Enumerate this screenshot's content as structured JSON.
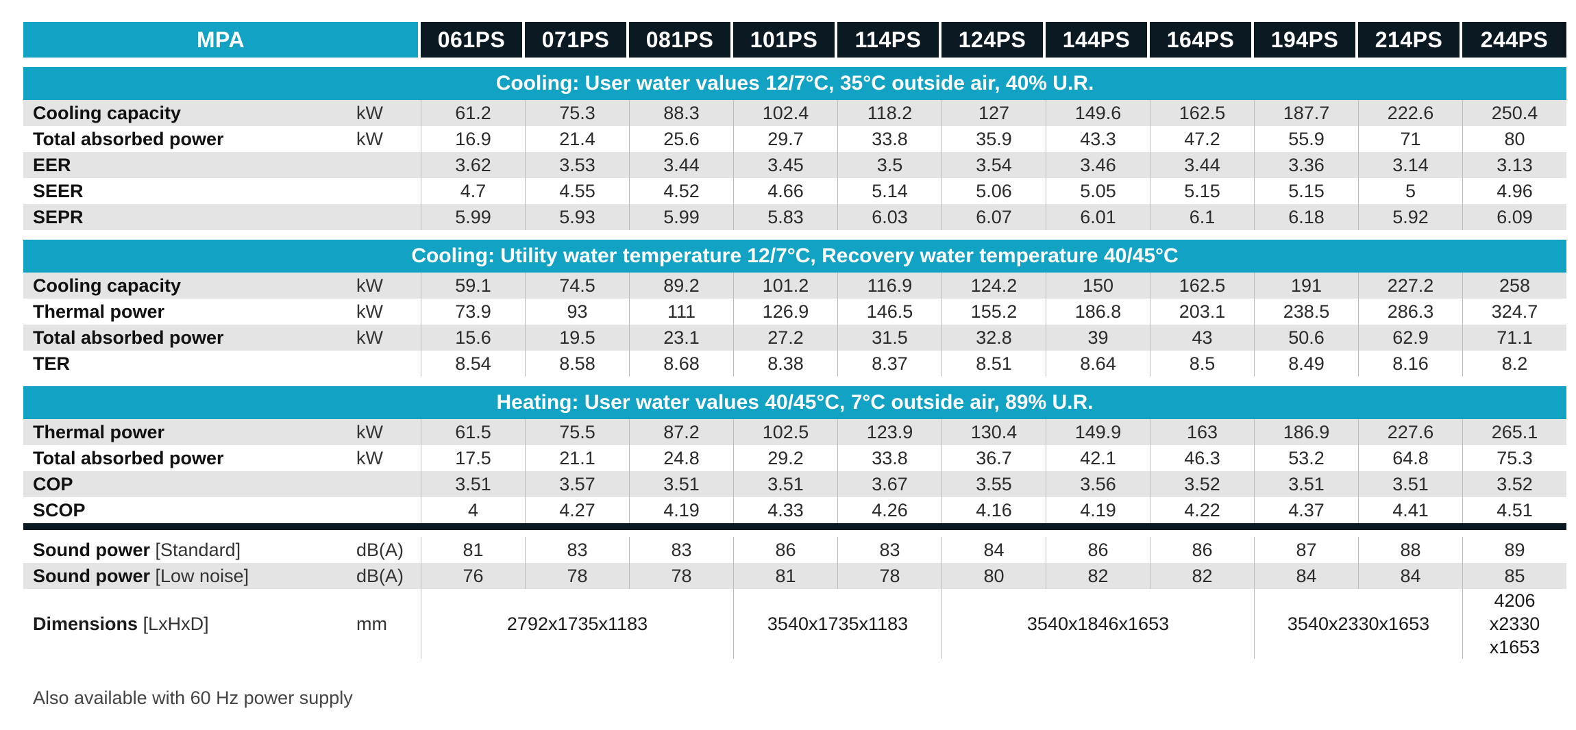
{
  "header": {
    "brand": "MPA",
    "models": [
      "061PS",
      "071PS",
      "081PS",
      "101PS",
      "114PS",
      "124PS",
      "144PS",
      "164PS",
      "194PS",
      "214PS",
      "244PS"
    ]
  },
  "sections": [
    {
      "title": "Cooling: User water values 12/7°C, 35°C outside air, 40% U.R.",
      "rows": [
        {
          "label": "Cooling capacity",
          "unit": "kW",
          "values": [
            "61.2",
            "75.3",
            "88.3",
            "102.4",
            "118.2",
            "127",
            "149.6",
            "162.5",
            "187.7",
            "222.6",
            "250.4"
          ]
        },
        {
          "label": "Total absorbed power",
          "unit": "kW",
          "values": [
            "16.9",
            "21.4",
            "25.6",
            "29.7",
            "33.8",
            "35.9",
            "43.3",
            "47.2",
            "55.9",
            "71",
            "80"
          ]
        },
        {
          "label": "EER",
          "unit": "",
          "values": [
            "3.62",
            "3.53",
            "3.44",
            "3.45",
            "3.5",
            "3.54",
            "3.46",
            "3.44",
            "3.36",
            "3.14",
            "3.13"
          ]
        },
        {
          "label": "SEER",
          "unit": "",
          "values": [
            "4.7",
            "4.55",
            "4.52",
            "4.66",
            "5.14",
            "5.06",
            "5.05",
            "5.15",
            "5.15",
            "5",
            "4.96"
          ]
        },
        {
          "label": "SEPR",
          "unit": "",
          "values": [
            "5.99",
            "5.93",
            "5.99",
            "5.83",
            "6.03",
            "6.07",
            "6.01",
            "6.1",
            "6.18",
            "5.92",
            "6.09"
          ]
        }
      ]
    },
    {
      "title": "Cooling: Utility water temperature 12/7°C, Recovery water temperature 40/45°C",
      "rows": [
        {
          "label": "Cooling capacity",
          "unit": "kW",
          "values": [
            "59.1",
            "74.5",
            "89.2",
            "101.2",
            "116.9",
            "124.2",
            "150",
            "162.5",
            "191",
            "227.2",
            "258"
          ]
        },
        {
          "label": "Thermal power",
          "unit": "kW",
          "values": [
            "73.9",
            "93",
            "111",
            "126.9",
            "146.5",
            "155.2",
            "186.8",
            "203.1",
            "238.5",
            "286.3",
            "324.7"
          ]
        },
        {
          "label": "Total absorbed power",
          "unit": "kW",
          "values": [
            "15.6",
            "19.5",
            "23.1",
            "27.2",
            "31.5",
            "32.8",
            "39",
            "43",
            "50.6",
            "62.9",
            "71.1"
          ]
        },
        {
          "label": "TER",
          "unit": "",
          "values": [
            "8.54",
            "8.58",
            "8.68",
            "8.38",
            "8.37",
            "8.51",
            "8.64",
            "8.5",
            "8.49",
            "8.16",
            "8.2"
          ]
        }
      ]
    },
    {
      "title": "Heating: User water values 40/45°C, 7°C outside air, 89% U.R.",
      "rows": [
        {
          "label": "Thermal power",
          "unit": "kW",
          "values": [
            "61.5",
            "75.5",
            "87.2",
            "102.5",
            "123.9",
            "130.4",
            "149.9",
            "163",
            "186.9",
            "227.6",
            "265.1"
          ]
        },
        {
          "label": "Total absorbed power",
          "unit": "kW",
          "values": [
            "17.5",
            "21.1",
            "24.8",
            "29.2",
            "33.8",
            "36.7",
            "42.1",
            "46.3",
            "53.2",
            "64.8",
            "75.3"
          ]
        },
        {
          "label": "COP",
          "unit": "",
          "values": [
            "3.51",
            "3.57",
            "3.51",
            "3.51",
            "3.67",
            "3.55",
            "3.56",
            "3.52",
            "3.51",
            "3.51",
            "3.52"
          ]
        },
        {
          "label": "SCOP",
          "unit": "",
          "values": [
            "4",
            "4.27",
            "4.19",
            "4.33",
            "4.26",
            "4.16",
            "4.19",
            "4.22",
            "4.37",
            "4.41",
            "4.51"
          ]
        }
      ]
    }
  ],
  "sound": [
    {
      "label": "Sound power",
      "sub": "[Standard]",
      "unit": "dB(A)",
      "values": [
        "81",
        "83",
        "83",
        "86",
        "83",
        "84",
        "86",
        "86",
        "87",
        "88",
        "89"
      ]
    },
    {
      "label": "Sound power",
      "sub": "[Low noise]",
      "unit": "dB(A)",
      "values": [
        "76",
        "78",
        "78",
        "81",
        "78",
        "80",
        "82",
        "82",
        "84",
        "84",
        "85"
      ]
    }
  ],
  "dimensions": {
    "label": "Dimensions",
    "sub": "[LxHxD]",
    "unit": "mm",
    "groups": [
      {
        "value": "2792x1735x1183",
        "span": 3
      },
      {
        "value": "3540x1735x1183",
        "span": 2
      },
      {
        "value": "3540x1846x1653",
        "span": 3
      },
      {
        "value": "3540x2330x1653",
        "span": 2
      },
      {
        "value": "4206 x2330 x1653",
        "span": 1
      }
    ]
  },
  "footnote": "Also available with 60 Hz power supply"
}
